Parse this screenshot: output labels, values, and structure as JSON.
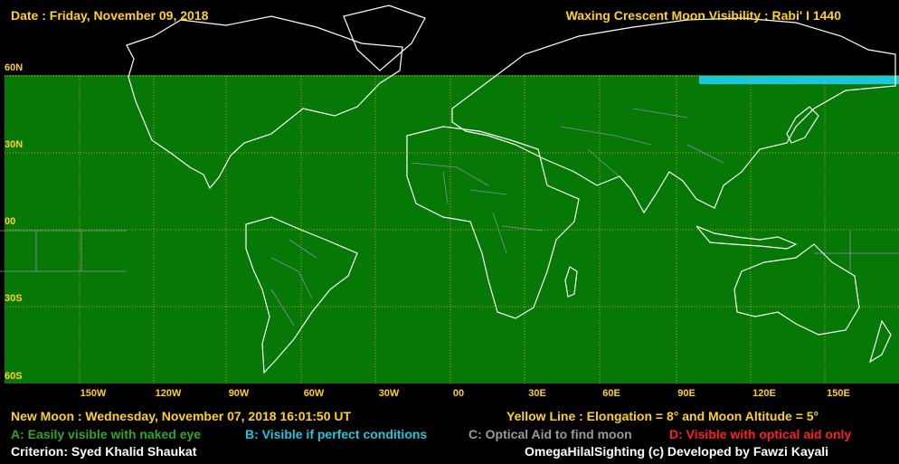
{
  "header": {
    "date": "Date : Friday, November 09, 2018",
    "title": "Waxing Crescent Moon Visibility : Rabi' I 1440"
  },
  "map": {
    "lat_labels": [
      "60N",
      "30N",
      "00",
      "30S",
      "60S"
    ],
    "lon_labels": [
      "150W",
      "120W",
      "90W",
      "60W",
      "30W",
      "00",
      "30E",
      "60E",
      "90E",
      "120E",
      "150E"
    ],
    "colors": {
      "zone_a": "#067806",
      "zone_b": "#19c8dc",
      "grid": "#c8a020",
      "coast": "#ffffff",
      "border": "#8c8cb4",
      "labels": "#ffd21e"
    }
  },
  "footer": {
    "new_moon": "New Moon : Wednesday, November 07, 2018  16:01:50  UT",
    "yellow_line": "Yellow Line : Elongation = 8° and Moon Altitude = 5°",
    "legend_a": "A: Easily visible with naked eye",
    "legend_b": "B: Visible if perfect conditions",
    "legend_c": "C: Optical Aid to find moon",
    "legend_d": "D: Visible with optical aid only",
    "criterion": "Criterion: Syed Khalid Shaukat",
    "credit": "OmegaHilalSighting  (c)  Developed by Fawzi Kayali"
  }
}
